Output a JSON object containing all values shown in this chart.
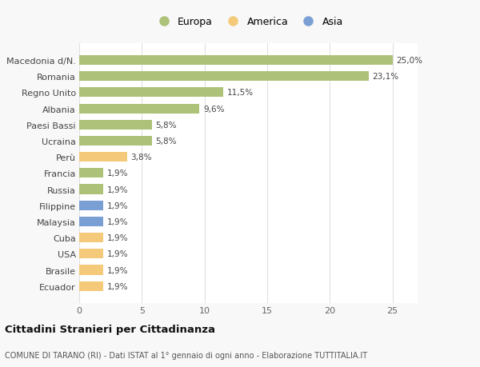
{
  "categories": [
    "Macedonia d/N.",
    "Romania",
    "Regno Unito",
    "Albania",
    "Paesi Bassi",
    "Ucraina",
    "Perù",
    "Francia",
    "Russia",
    "Filippine",
    "Malaysia",
    "Cuba",
    "USA",
    "Brasile",
    "Ecuador"
  ],
  "values": [
    25.0,
    23.1,
    11.5,
    9.6,
    5.8,
    5.8,
    3.8,
    1.9,
    1.9,
    1.9,
    1.9,
    1.9,
    1.9,
    1.9,
    1.9
  ],
  "labels": [
    "25,0%",
    "23,1%",
    "11,5%",
    "9,6%",
    "5,8%",
    "5,8%",
    "3,8%",
    "1,9%",
    "1,9%",
    "1,9%",
    "1,9%",
    "1,9%",
    "1,9%",
    "1,9%",
    "1,9%"
  ],
  "continents": [
    "Europa",
    "Europa",
    "Europa",
    "Europa",
    "Europa",
    "Europa",
    "America",
    "Europa",
    "Europa",
    "Asia",
    "Asia",
    "America",
    "America",
    "America",
    "America"
  ],
  "colors": {
    "Europa": "#adc178",
    "America": "#f5c97a",
    "Asia": "#7a9fd4"
  },
  "legend_items": [
    "Europa",
    "America",
    "Asia"
  ],
  "title": "Cittadini Stranieri per Cittadinanza",
  "subtitle": "COMUNE DI TARANO (RI) - Dati ISTAT al 1° gennaio di ogni anno - Elaborazione TUTTITALIA.IT",
  "xlim": [
    0,
    27
  ],
  "xticks": [
    0,
    5,
    10,
    15,
    20,
    25
  ],
  "background_color": "#f8f8f8",
  "plot_background": "#ffffff",
  "grid_color": "#e0e0e0"
}
